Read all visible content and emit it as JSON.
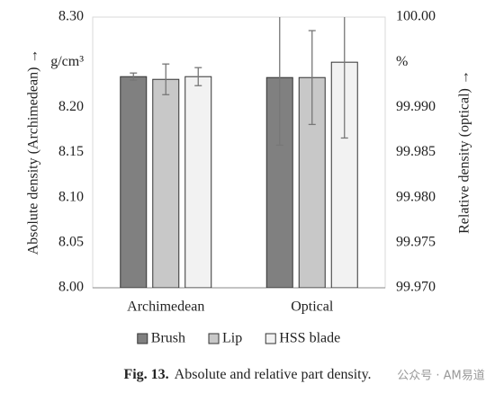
{
  "chart_data": {
    "type": "bar",
    "y_label": "Absolute density (Archimedean) →",
    "y2_label": "Relative density (optical) →",
    "categories": [
      "Archimedean",
      "Optical"
    ],
    "category_axes": [
      "y",
      "y2"
    ],
    "series": [
      {
        "name": "Brush",
        "color": "#808080",
        "values": [
          8.234,
          99.9933
        ],
        "errors": [
          0.004,
          0.0075
        ]
      },
      {
        "name": "Lip",
        "color": "#c8c8c8",
        "values": [
          8.231,
          99.9933
        ],
        "errors": [
          0.017,
          0.0052
        ]
      },
      {
        "name": "HSS blade",
        "color": "#f2f2f2",
        "values": [
          8.234,
          99.995
        ],
        "errors": [
          0.01,
          0.0084
        ]
      }
    ],
    "ylim": [
      8.0,
      8.3
    ],
    "yticks": [
      {
        "value": 8.0,
        "label": "8.00"
      },
      8.05,
      {
        "value": 8.1,
        "label": "8.10"
      },
      8.15,
      {
        "value": 8.2,
        "label": "8.20"
      },
      {
        "value": 8.25,
        "label": "g/cm³"
      },
      {
        "value": 8.3,
        "label": "8.30"
      }
    ],
    "y2lim": [
      99.97,
      100.0
    ],
    "y2ticks": [
      {
        "value": 99.97,
        "label": "99.970"
      },
      99.975,
      {
        "value": 99.98,
        "label": "99.980"
      },
      99.985,
      {
        "value": 99.99,
        "label": "99.990"
      },
      {
        "value": 99.995,
        "label": "%"
      },
      {
        "value": 100.0,
        "label": "100.00"
      }
    ],
    "legend": "bottom",
    "caption_label": "Fig. 13.",
    "caption": "Absolute and relative part density.",
    "watermark": "公众号 · AM易道"
  }
}
